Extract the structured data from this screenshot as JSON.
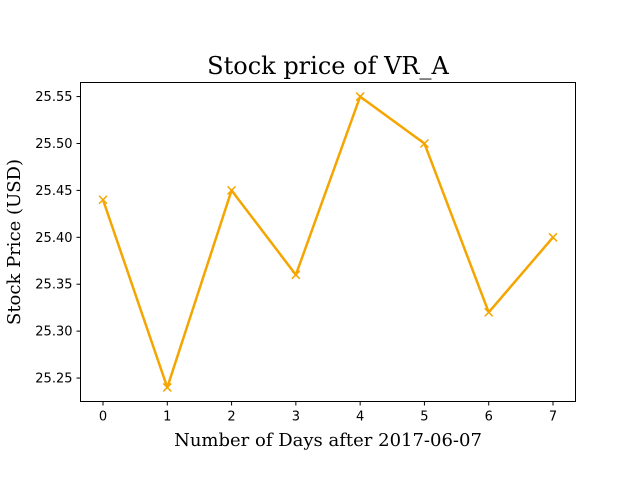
{
  "chart_data": {
    "type": "line",
    "title": "Stock price of VR_A",
    "xlabel": "Number of Days after 2017-06-07",
    "ylabel": "Stock Price (USD)",
    "x": [
      0,
      1,
      2,
      3,
      4,
      5,
      6,
      7
    ],
    "xticks": [
      "0",
      "1",
      "2",
      "3",
      "4",
      "5",
      "6",
      "7"
    ],
    "yticks": [
      "25.25",
      "25.30",
      "25.35",
      "25.40",
      "25.45",
      "25.50",
      "25.55"
    ],
    "xlim": [
      -0.35,
      7.35
    ],
    "ylim": [
      25.225,
      25.565
    ],
    "grid": false,
    "legend": "none",
    "marker": "x",
    "series": [
      {
        "color": "#f5a500",
        "values": [
          25.44,
          25.24,
          25.45,
          25.36,
          25.55,
          25.5,
          25.32,
          25.4
        ]
      }
    ]
  }
}
